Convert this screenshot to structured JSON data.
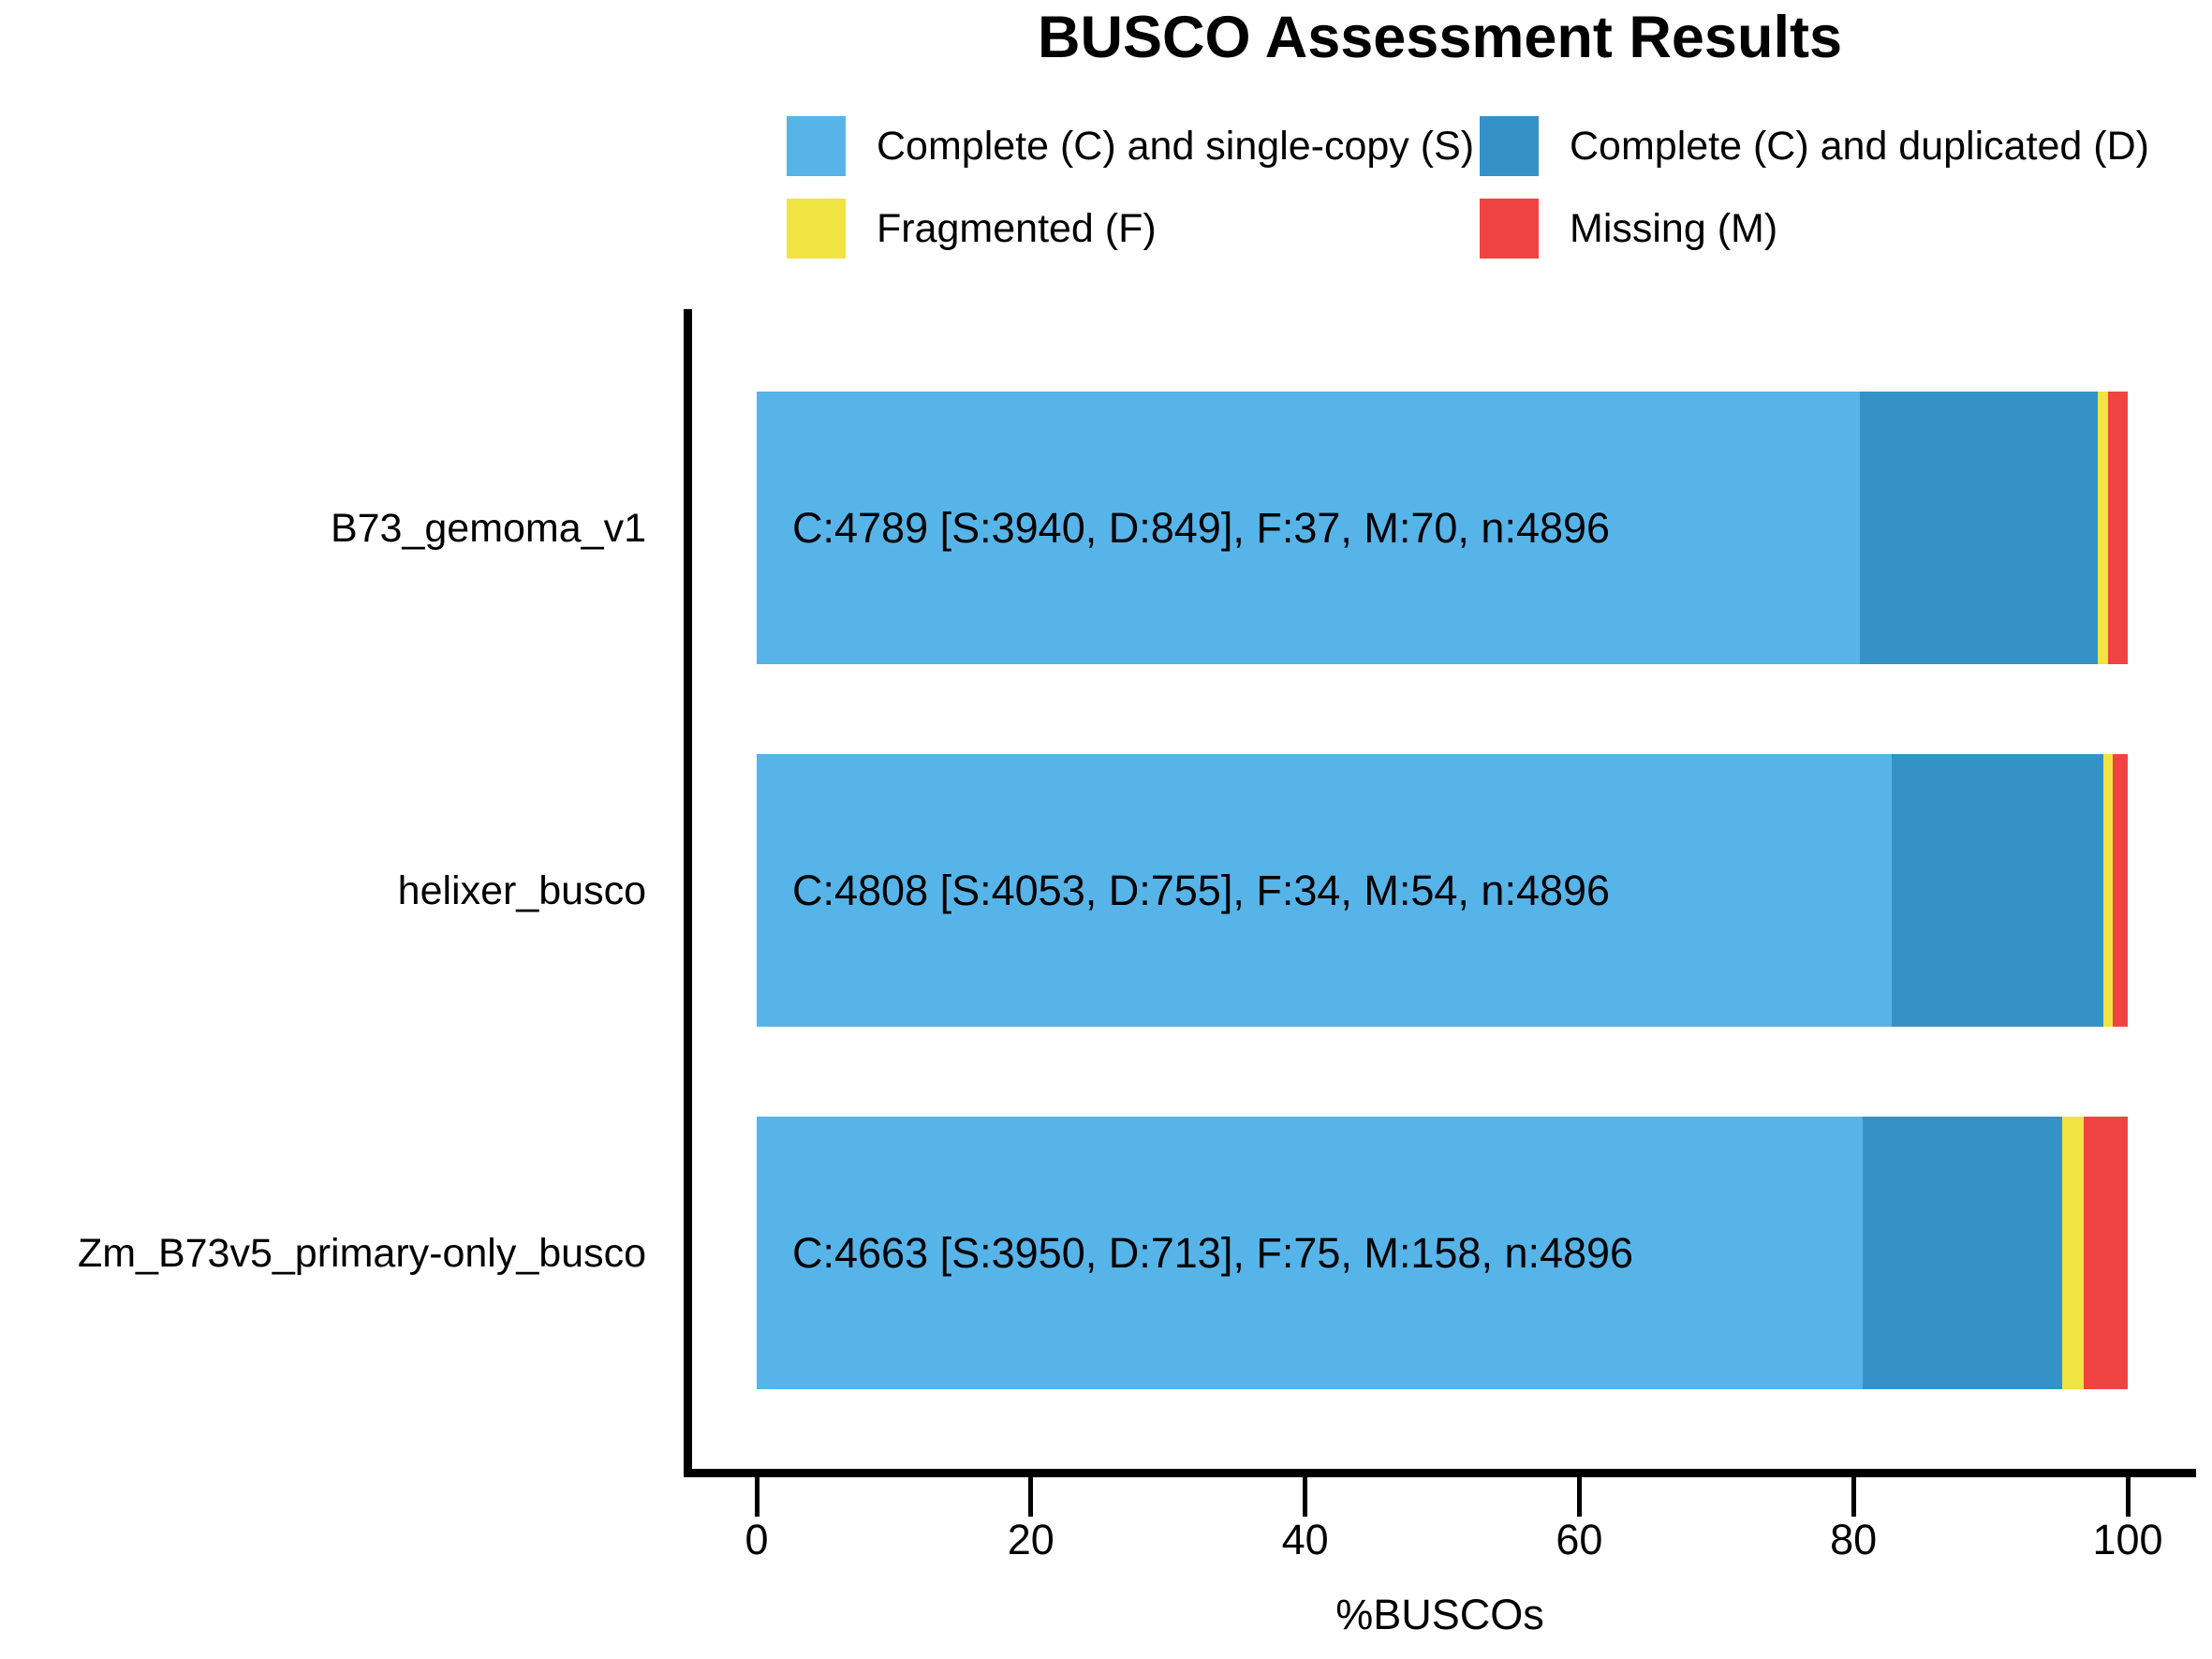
{
  "title": "BUSCO Assessment Results",
  "xlabel": "%BUSCOs",
  "legend": [
    {
      "label": "Complete (C) and single-copy (S)",
      "color": "#56B4E9"
    },
    {
      "label": "Complete (C) and duplicated (D)",
      "color": "#3492C7"
    },
    {
      "label": "Fragmented (F)",
      "color": "#F0E442"
    },
    {
      "label": "Missing (M)",
      "color": "#F04442"
    }
  ],
  "chart_data": {
    "type": "bar",
    "orientation": "horizontal",
    "stacked": true,
    "title": "BUSCO Assessment Results",
    "xlabel": "%BUSCOs",
    "xlim": [
      0,
      100
    ],
    "x_ticks": [
      0,
      20,
      40,
      60,
      80,
      100
    ],
    "legend_position": "top",
    "grid": false,
    "n": 4896,
    "categories": [
      "B73_gemoma_v1",
      "helixer_busco",
      "Zm_B73v5_primary-only_busco"
    ],
    "series": [
      {
        "name": "Complete (C) and single-copy (S)",
        "color": "#56B4E9",
        "values": [
          3940,
          4053,
          3950
        ]
      },
      {
        "name": "Complete (C) and duplicated (D)",
        "color": "#3492C7",
        "values": [
          849,
          755,
          713
        ]
      },
      {
        "name": "Fragmented (F)",
        "color": "#F0E442",
        "values": [
          37,
          34,
          75
        ]
      },
      {
        "name": "Missing (M)",
        "color": "#F04442",
        "values": [
          70,
          54,
          158
        ]
      }
    ],
    "percentages": [
      {
        "S": 80.5,
        "D": 17.3,
        "F": 0.8,
        "M": 1.4
      },
      {
        "S": 82.8,
        "D": 15.4,
        "F": 0.7,
        "M": 1.1
      },
      {
        "S": 80.7,
        "D": 14.6,
        "F": 1.5,
        "M": 3.2
      }
    ],
    "annotations": [
      "C:4789 [S:3940, D:849], F:37, M:70, n:4896",
      "C:4808 [S:4053, D:755], F:34, M:54, n:4896",
      "C:4663 [S:3950, D:713], F:75, M:158, n:4896"
    ]
  }
}
